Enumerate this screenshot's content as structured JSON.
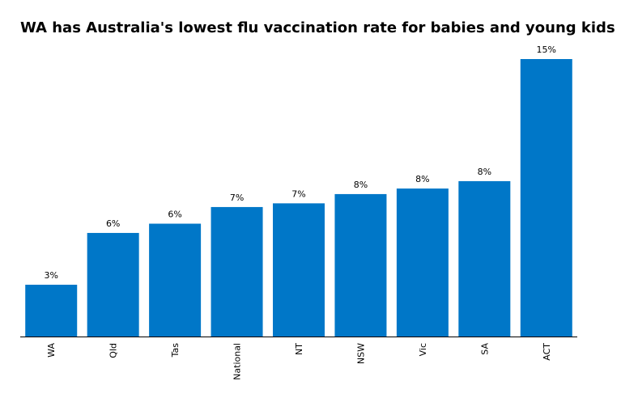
{
  "chart_data": {
    "type": "bar",
    "title": "WA has Australia's lowest flu vaccination rate for babies and young kids",
    "categories": [
      "WA",
      "Qld",
      "Tas",
      "National",
      "NT",
      "NSW",
      "Vic",
      "SA",
      "ACT"
    ],
    "values": [
      2.8,
      5.6,
      6.1,
      7.0,
      7.2,
      7.7,
      8.0,
      8.4,
      15.0
    ],
    "value_labels": [
      "3%",
      "6%",
      "6%",
      "7%",
      "7%",
      "8%",
      "8%",
      "8%",
      "15%"
    ],
    "color": "#0077c8"
  }
}
